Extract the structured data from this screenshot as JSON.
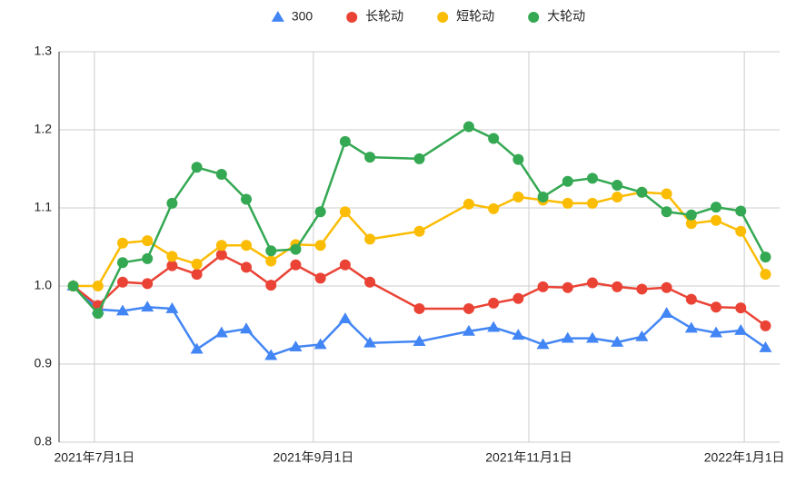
{
  "chart_data": {
    "type": "line",
    "x": [
      "2021-06-25",
      "2021-07-02",
      "2021-07-09",
      "2021-07-16",
      "2021-07-23",
      "2021-07-30",
      "2021-08-06",
      "2021-08-13",
      "2021-08-20",
      "2021-08-27",
      "2021-09-03",
      "2021-09-10",
      "2021-09-17",
      "2021-10-01",
      "2021-10-15",
      "2021-10-22",
      "2021-10-29",
      "2021-11-05",
      "2021-11-12",
      "2021-11-19",
      "2021-11-26",
      "2021-12-03",
      "2021-12-10",
      "2021-12-17",
      "2021-12-24",
      "2021-12-31",
      "2022-01-07"
    ],
    "series": [
      {
        "name": "300",
        "color": "#4285f4",
        "marker": "triangle",
        "values": [
          1.0,
          0.97,
          0.968,
          0.973,
          0.971,
          0.919,
          0.94,
          0.945,
          0.911,
          0.922,
          0.925,
          0.958,
          0.927,
          0.929,
          0.942,
          0.947,
          0.937,
          0.925,
          0.933,
          0.933,
          0.928,
          0.935,
          0.965,
          0.946,
          0.94,
          0.943,
          0.921
        ]
      },
      {
        "name": "长轮动",
        "color": "#ea4335",
        "marker": "circle",
        "values": [
          1.0,
          0.975,
          1.005,
          1.003,
          1.026,
          1.015,
          1.04,
          1.024,
          1.001,
          1.027,
          1.01,
          1.027,
          1.005,
          0.971,
          0.971,
          0.978,
          0.984,
          0.999,
          0.998,
          1.004,
          0.999,
          0.996,
          0.998,
          0.983,
          0.973,
          0.972,
          0.949
        ]
      },
      {
        "name": "短轮动",
        "color": "#fbbc04",
        "marker": "circle",
        "values": [
          1.0,
          1.0,
          1.055,
          1.058,
          1.038,
          1.028,
          1.052,
          1.052,
          1.032,
          1.053,
          1.052,
          1.095,
          1.06,
          1.07,
          1.105,
          1.099,
          1.114,
          1.11,
          1.106,
          1.106,
          1.114,
          1.12,
          1.118,
          1.08,
          1.084,
          1.07,
          1.015
        ]
      },
      {
        "name": "大轮动",
        "color": "#34a853",
        "marker": "circle",
        "values": [
          1.0,
          0.965,
          1.03,
          1.035,
          1.106,
          1.152,
          1.143,
          1.111,
          1.045,
          1.047,
          1.095,
          1.185,
          1.165,
          1.163,
          1.204,
          1.189,
          1.162,
          1.114,
          1.134,
          1.138,
          1.129,
          1.12,
          1.095,
          1.091,
          1.101,
          1.096,
          1.037
        ]
      }
    ],
    "xlim": [
      "2021-06-21",
      "2022-01-11"
    ],
    "xticks": [
      {
        "value": "2021-07-01",
        "label": "2021年7月1日"
      },
      {
        "value": "2021-09-01",
        "label": "2021年9月1日"
      },
      {
        "value": "2021-11-01",
        "label": "2021年11月1日"
      },
      {
        "value": "2022-01-01",
        "label": "2022年1月1日"
      }
    ],
    "ylim": [
      0.8,
      1.3
    ],
    "yticks": [
      0.8,
      0.9,
      {
        "value": 1,
        "label": "1.0"
      },
      1.1,
      1.2,
      1.3
    ],
    "grid": true,
    "legend": "top"
  }
}
